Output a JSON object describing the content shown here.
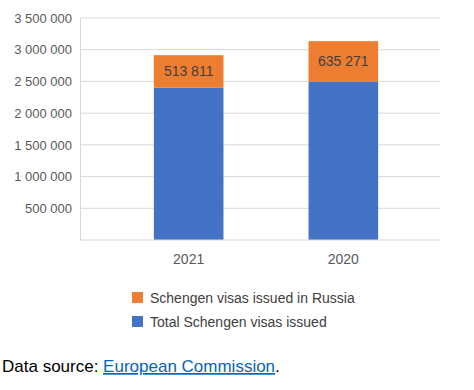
{
  "chart_data": {
    "type": "bar",
    "stacked": true,
    "grid": true,
    "categories": [
      "2021",
      "2020"
    ],
    "series": [
      {
        "name": "Total Schengen visas issued",
        "color": "#4472c4",
        "values": [
          2400000,
          2500000
        ]
      },
      {
        "name": "Schengen visas issued in Russia",
        "color": "#ed7d31",
        "values": [
          513811,
          635271
        ],
        "data_labels": true,
        "value_labels": [
          "513 811",
          "635 271"
        ]
      }
    ],
    "ylim": [
      0,
      3500000
    ],
    "yticks": [
      {
        "value": 500000,
        "label": "500 000"
      },
      {
        "value": 1000000,
        "label": "1 000 000"
      },
      {
        "value": 1500000,
        "label": "1 500 000"
      },
      {
        "value": 2000000,
        "label": "2 000 000"
      },
      {
        "value": 2500000,
        "label": "2 500 000"
      },
      {
        "value": 3000000,
        "label": "3 000 000"
      },
      {
        "value": 3500000,
        "label": "3 500 000"
      }
    ],
    "annotations": [
      "Data source: ",
      "European Commission",
      "."
    ]
  }
}
